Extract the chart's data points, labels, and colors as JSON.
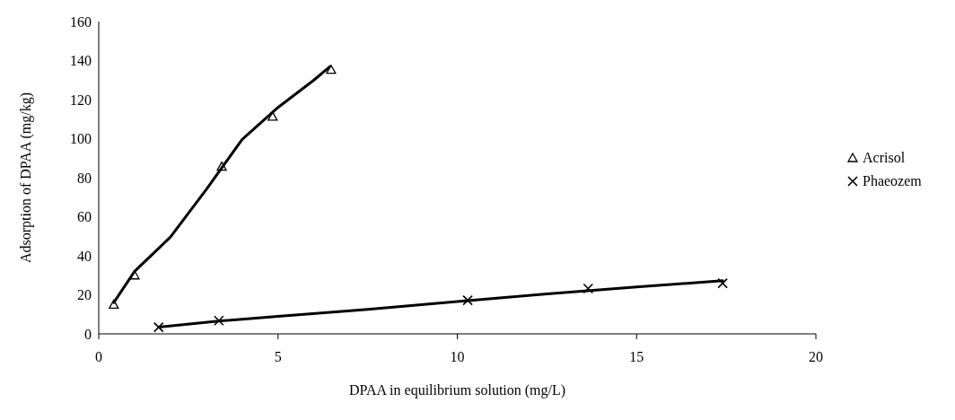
{
  "chart_data": {
    "type": "scatter",
    "xlabel": "DPAA in equilibrium solution (mg/L)",
    "ylabel": "Adsorption of DPAA (mg/kg)",
    "xlim": [
      0,
      20
    ],
    "xticks": [
      0,
      5,
      10,
      15,
      20
    ],
    "ylim": [
      0,
      160
    ],
    "yticks": [
      0,
      20,
      40,
      60,
      80,
      100,
      120,
      140,
      160
    ],
    "grid": false,
    "legend": "right",
    "series": [
      {
        "name": "Acrisol",
        "marker": "triangle",
        "color": "#000000",
        "x": [
          0.42,
          1.0,
          3.43,
          4.85,
          6.48
        ],
        "values": [
          15,
          30,
          85.7,
          111.3,
          135.3
        ]
      },
      {
        "name": "Phaeozem",
        "marker": "cross",
        "color": "#000000",
        "x": [
          1.67,
          3.35,
          10.29,
          13.65,
          17.4
        ],
        "values": [
          3.4,
          6.8,
          17.2,
          23.2,
          25.9
        ]
      },
      {
        "type": "line",
        "marker": "none",
        "color": "#000000",
        "x": [
          0.42,
          1,
          2,
          3,
          4,
          5,
          6,
          6.45
        ],
        "values": [
          16,
          32,
          49.6,
          74,
          99.6,
          116,
          130,
          137
        ]
      },
      {
        "type": "line",
        "marker": "none",
        "color": "#000000",
        "x": [
          1.67,
          3.35,
          5,
          7.5,
          10,
          12.5,
          15,
          17.4
        ],
        "values": [
          3.5,
          6.5,
          9,
          12.5,
          16.5,
          20.5,
          24,
          27.2
        ]
      }
    ]
  }
}
